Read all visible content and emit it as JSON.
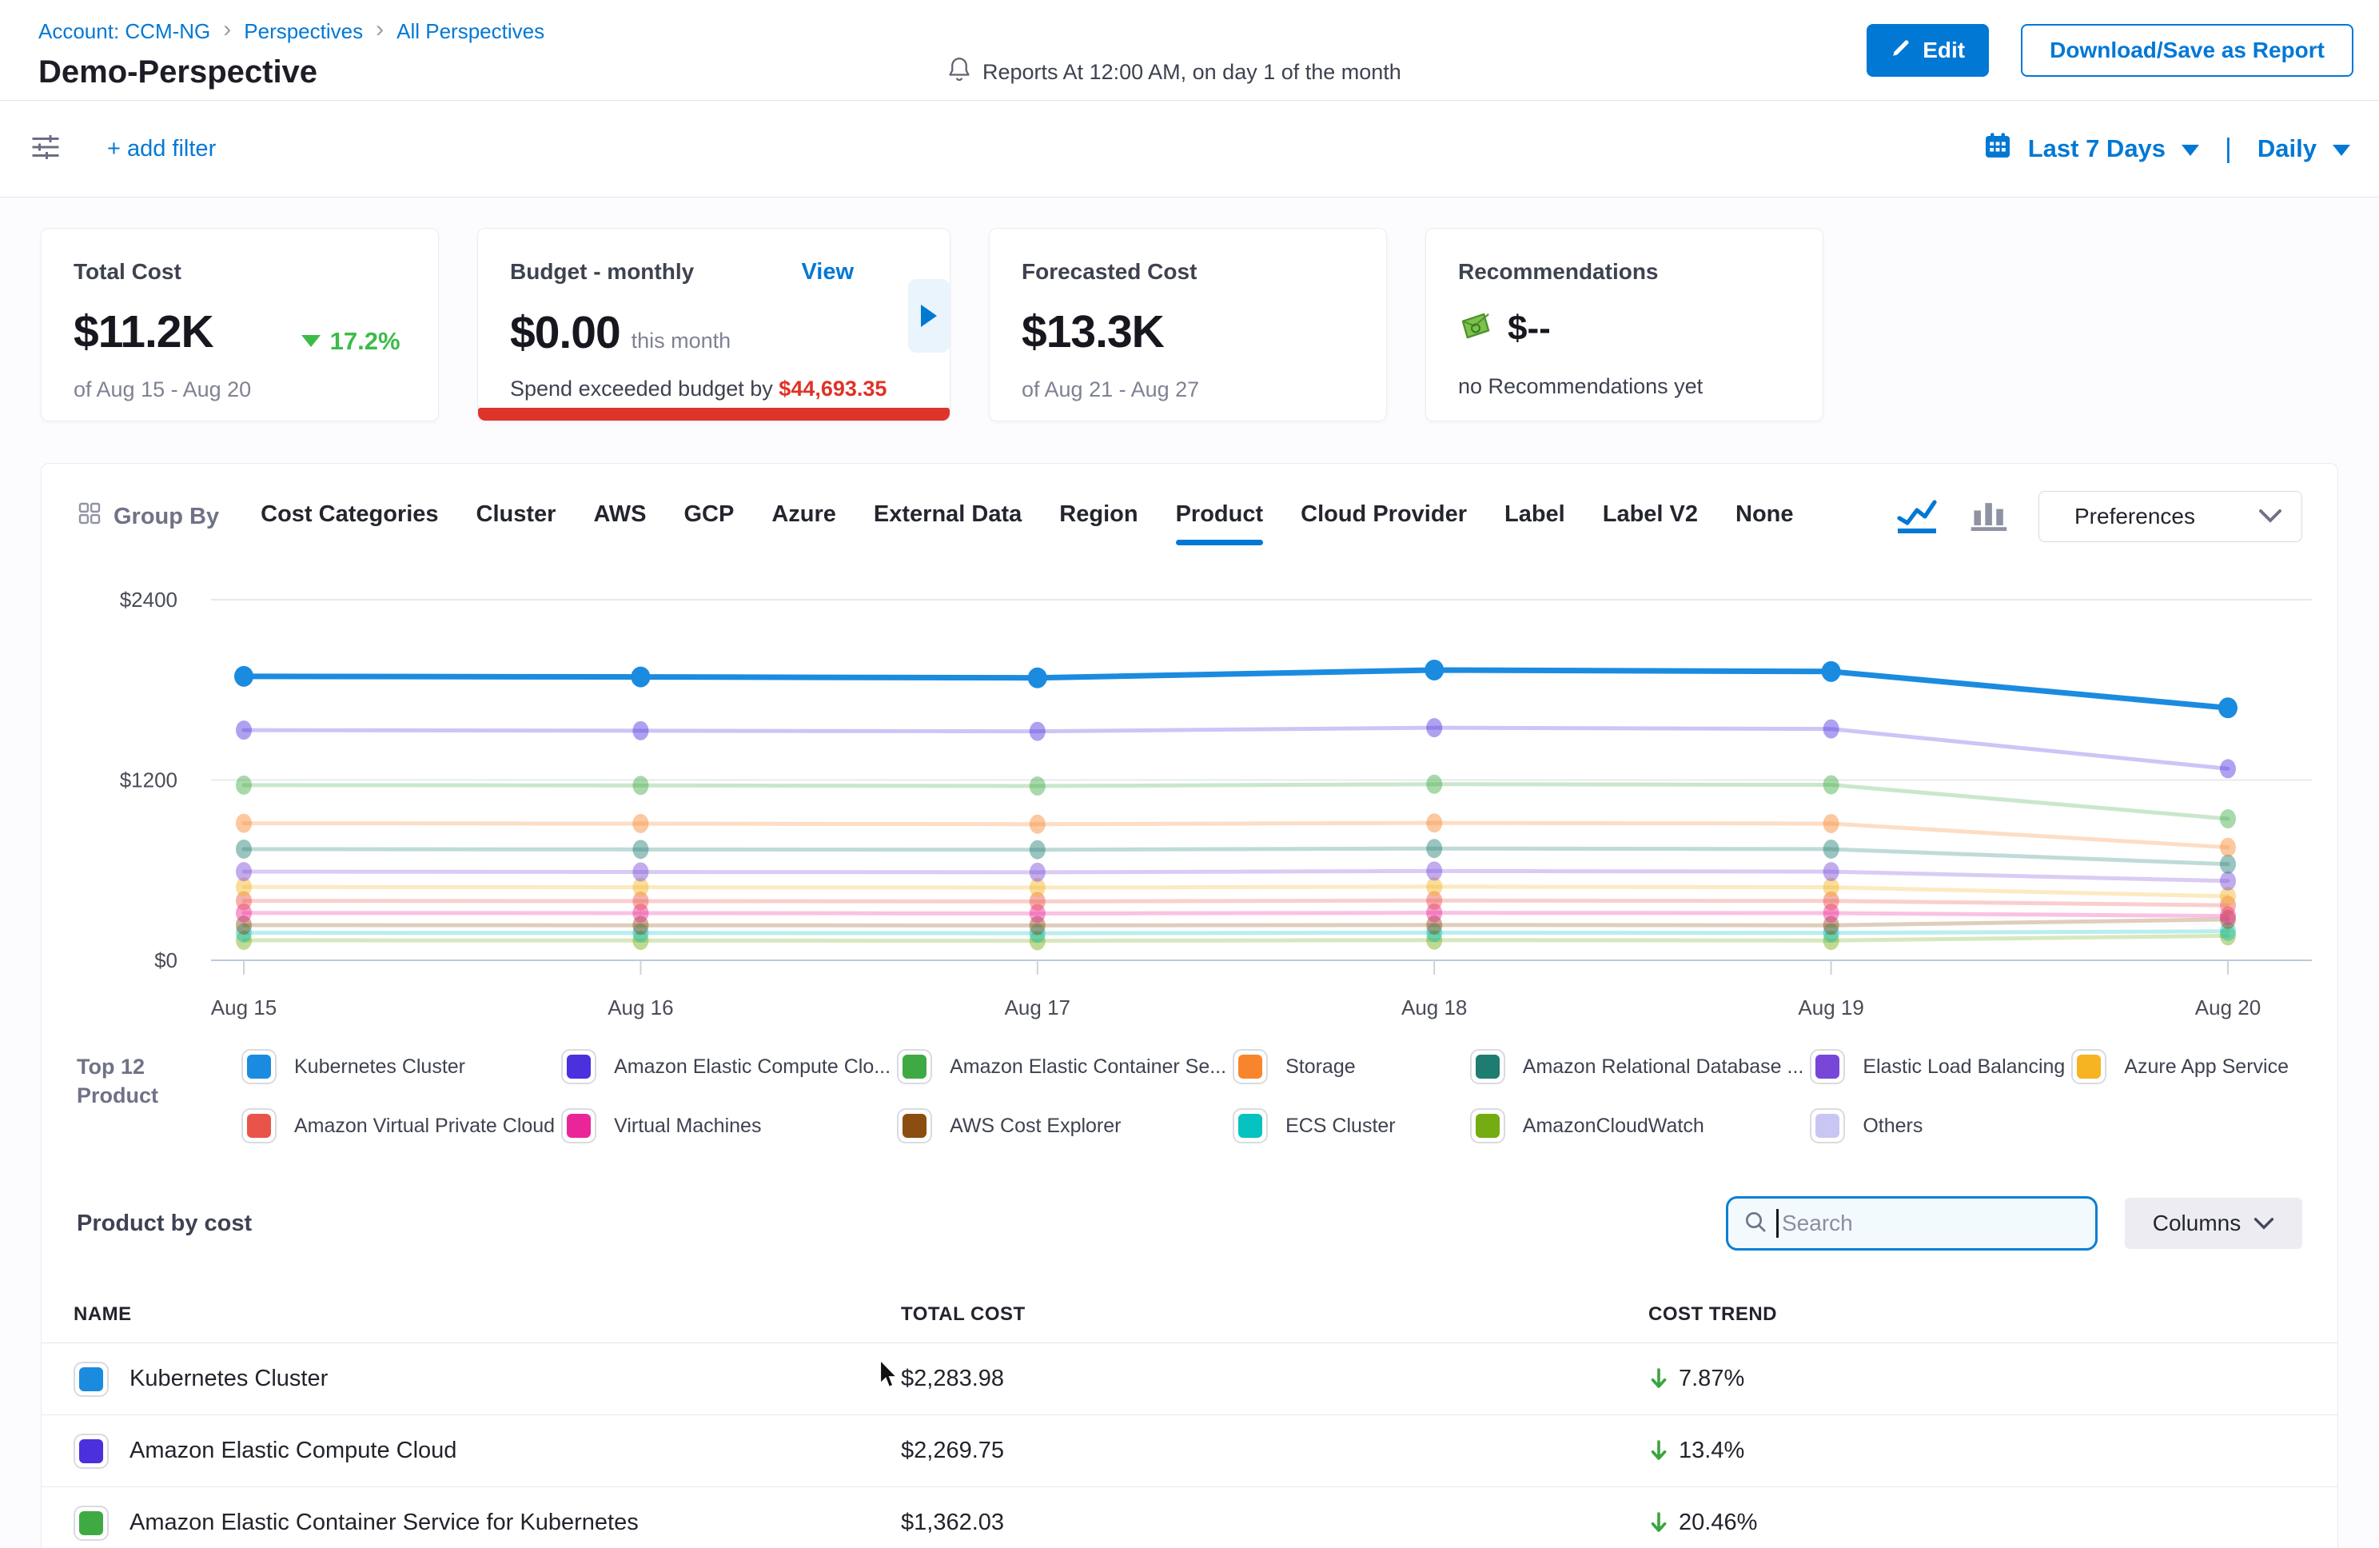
{
  "header": {
    "breadcrumb": [
      "Account: CCM-NG",
      "Perspectives",
      "All Perspectives"
    ],
    "title": "Demo-Perspective",
    "reports_note": "Reports At 12:00 AM, on day 1 of the month",
    "edit_button": "Edit",
    "download_button": "Download/Save as Report"
  },
  "filter_bar": {
    "add_filter": "+ add filter",
    "date_range": "Last 7 Days",
    "granularity": "Daily"
  },
  "cards": {
    "total_cost": {
      "label": "Total Cost",
      "value": "$11.2K",
      "delta": "17.2%",
      "delta_direction": "down",
      "period": "of Aug 15 - Aug 20"
    },
    "budget": {
      "label": "Budget - monthly",
      "view_link": "View",
      "value": "$0.00",
      "value_suffix": "this month",
      "exceeded_text": "Spend exceeded budget by",
      "exceeded_amount": "$44,693.35"
    },
    "forecasted": {
      "label": "Forecasted Cost",
      "value": "$13.3K",
      "period": "of Aug 21 - Aug 27"
    },
    "recommendations": {
      "label": "Recommendations",
      "value": "$--",
      "note": "no Recommendations yet"
    }
  },
  "group_by": {
    "label": "Group By",
    "tabs": [
      "Cost Categories",
      "Cluster",
      "AWS",
      "GCP",
      "Azure",
      "External Data",
      "Region",
      "Product",
      "Cloud Provider",
      "Label",
      "Label V2",
      "None"
    ],
    "active_tab": "Product",
    "preferences": "Preferences"
  },
  "chart_data": {
    "type": "line",
    "x": [
      "Aug 15",
      "Aug 16",
      "Aug 17",
      "Aug 18",
      "Aug 19",
      "Aug 20"
    ],
    "ylim": [
      0,
      2400
    ],
    "yticks": [
      {
        "label": "$2400",
        "value": 2400
      },
      {
        "label": "$1200",
        "value": 1200
      },
      {
        "label": "$0",
        "value": 0
      }
    ],
    "grid": true,
    "legend_position": "bottom",
    "series": [
      {
        "name": "Kubernetes Cluster",
        "color": "#1b8be0",
        "emphasis": true,
        "values": [
          1890,
          1886,
          1880,
          1932,
          1922,
          1680
        ]
      },
      {
        "name": "Amazon Elastic Compute Cloud",
        "color": "#4b30dd",
        "emphasis": false,
        "values": [
          1532,
          1528,
          1524,
          1548,
          1540,
          1275
        ]
      },
      {
        "name": "Amazon Elastic Container Service for Kubernetes",
        "color": "#3faa44",
        "emphasis": false,
        "values": [
          1166,
          1164,
          1160,
          1172,
          1168,
          942
        ]
      },
      {
        "name": "Storage",
        "color": "#f8852c",
        "emphasis": false,
        "values": [
          912,
          910,
          906,
          914,
          910,
          752
        ]
      },
      {
        "name": "Amazon Relational Database Service",
        "color": "#1e7c71",
        "emphasis": false,
        "values": [
          740,
          738,
          736,
          744,
          740,
          640
        ]
      },
      {
        "name": "Elastic Load Balancing",
        "color": "#7847d8",
        "emphasis": false,
        "values": [
          590,
          588,
          586,
          594,
          590,
          528
        ]
      },
      {
        "name": "Azure App Service",
        "color": "#f6b322",
        "emphasis": false,
        "values": [
          488,
          486,
          484,
          490,
          486,
          426
        ]
      },
      {
        "name": "Amazon Virtual Private Cloud",
        "color": "#e8544a",
        "emphasis": false,
        "values": [
          396,
          394,
          392,
          398,
          395,
          366
        ]
      },
      {
        "name": "Virtual Machines",
        "color": "#ea2598",
        "emphasis": false,
        "values": [
          315,
          314,
          312,
          316,
          314,
          295
        ]
      },
      {
        "name": "AWS Cost Explorer",
        "color": "#8b4e10",
        "emphasis": false,
        "values": [
          234,
          233,
          232,
          235,
          233,
          272
        ]
      },
      {
        "name": "ECS Cluster",
        "color": "#06c2c0",
        "emphasis": false,
        "values": [
          183,
          182,
          180,
          184,
          182,
          193
        ]
      },
      {
        "name": "AmazonCloudWatch",
        "color": "#74ac12",
        "emphasis": false,
        "values": [
          133,
          132,
          130,
          134,
          132,
          163
        ]
      }
    ]
  },
  "legend": {
    "title_line1": "Top 12",
    "title_line2": "Product",
    "rows": [
      [
        {
          "label": "Kubernetes Cluster",
          "color": "#1b8be0"
        },
        {
          "label": "Amazon Elastic Compute Clo...",
          "color": "#4b30dd"
        },
        {
          "label": "Amazon Elastic Container Se...",
          "color": "#3faa44"
        },
        {
          "label": "Storage",
          "color": "#f8852c"
        },
        {
          "label": "Amazon Relational Database ...",
          "color": "#1e7c71"
        },
        {
          "label": "Elastic Load Balancing",
          "color": "#7847d8"
        },
        {
          "label": "Azure App Service",
          "color": "#f6b322"
        }
      ],
      [
        {
          "label": "Amazon Virtual Private Cloud",
          "color": "#e8544a"
        },
        {
          "label": "Virtual Machines",
          "color": "#ea2598"
        },
        {
          "label": "AWS Cost Explorer",
          "color": "#8b4e10"
        },
        {
          "label": "ECS Cluster",
          "color": "#06c2c0"
        },
        {
          "label": "AmazonCloudWatch",
          "color": "#74ac12"
        },
        {
          "label": "Others",
          "color": "#c9c6f3"
        }
      ]
    ]
  },
  "table": {
    "title": "Product by cost",
    "search_placeholder": "Search",
    "columns_button": "Columns",
    "headers": [
      "NAME",
      "TOTAL COST",
      "COST TREND"
    ],
    "rows": [
      {
        "name": "Kubernetes Cluster",
        "color": "#1b8be0",
        "total_cost": "$2,283.98",
        "trend": "7.87%",
        "trend_direction": "down"
      },
      {
        "name": "Amazon Elastic Compute Cloud",
        "color": "#4b30dd",
        "total_cost": "$2,269.75",
        "trend": "13.4%",
        "trend_direction": "down"
      },
      {
        "name": "Amazon Elastic Container Service for Kubernetes",
        "color": "#3faa44",
        "total_cost": "$1,362.03",
        "trend": "20.46%",
        "trend_direction": "down"
      }
    ]
  }
}
